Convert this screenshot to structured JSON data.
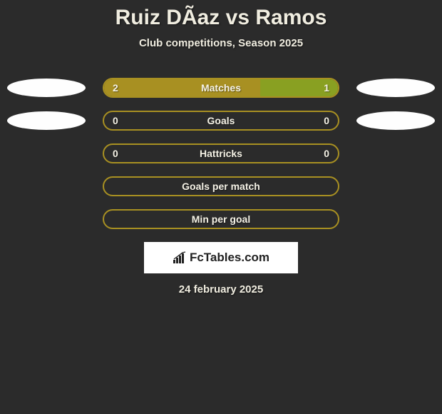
{
  "title": "Ruiz DÃ­az vs Ramos",
  "subtitle": "Club competitions, Season 2025",
  "date": "24 february 2025",
  "logo": "FcTables.com",
  "colors": {
    "bg": "#2b2b2b",
    "accent": "#a89022",
    "right_accent": "#89a022",
    "text": "#f0ede0",
    "avatar": "#fefefe"
  },
  "rows": [
    {
      "label": "Matches",
      "left_val": "2",
      "right_val": "1",
      "left_pct": 66.7,
      "right_pct": 33.3,
      "fill_color_left": "#a89022",
      "fill_color_right": "#89a022",
      "border_color": "#a89022",
      "show_avatar": true,
      "show_vals": true
    },
    {
      "label": "Goals",
      "left_val": "0",
      "right_val": "0",
      "left_pct": 0,
      "right_pct": 0,
      "fill_color_left": "#a89022",
      "fill_color_right": "#89a022",
      "border_color": "#a89022",
      "show_avatar": true,
      "show_vals": true
    },
    {
      "label": "Hattricks",
      "left_val": "0",
      "right_val": "0",
      "left_pct": 0,
      "right_pct": 0,
      "fill_color_left": "#a89022",
      "fill_color_right": "#89a022",
      "border_color": "#a89022",
      "show_avatar": false,
      "show_vals": true
    },
    {
      "label": "Goals per match",
      "left_val": "",
      "right_val": "",
      "left_pct": 0,
      "right_pct": 0,
      "fill_color_left": "#a89022",
      "fill_color_right": "#89a022",
      "border_color": "#a89022",
      "show_avatar": false,
      "show_vals": false
    },
    {
      "label": "Min per goal",
      "left_val": "",
      "right_val": "",
      "left_pct": 0,
      "right_pct": 0,
      "fill_color_left": "#a89022",
      "fill_color_right": "#89a022",
      "border_color": "#a89022",
      "show_avatar": false,
      "show_vals": false
    }
  ]
}
